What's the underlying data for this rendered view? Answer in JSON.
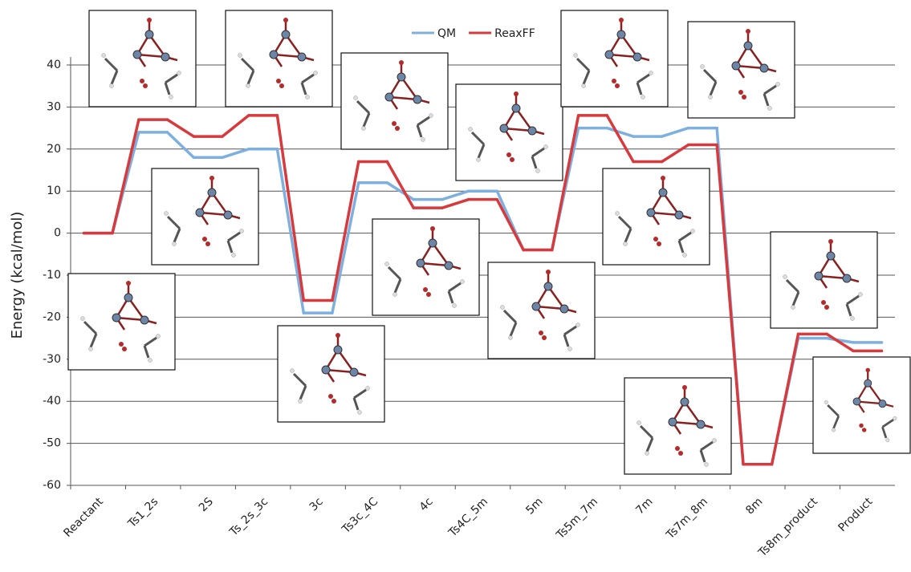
{
  "chart_data": {
    "type": "step-line",
    "y_label": "Energy (kcal/mol)",
    "categories": [
      "Reactant",
      "Ts1_2s",
      "2S",
      "Ts_2s_3c",
      "3c",
      "Ts3c_4C",
      "4c",
      "Ts4C_5m",
      "5m",
      "Ts5m_7m",
      "7m",
      "Ts7m_8m",
      "8m",
      "Ts8m_product",
      "Product"
    ],
    "series": [
      {
        "name": "QM",
        "color": "#7eb0df",
        "values": [
          0,
          24,
          18,
          20,
          -19,
          12,
          8,
          10,
          -4,
          25,
          23,
          25,
          -55,
          -25,
          -26
        ]
      },
      {
        "name": "ReaxFF",
        "color": "#d8393d",
        "values": [
          0,
          27,
          23,
          28,
          -16,
          17,
          6,
          8,
          -4,
          28,
          17,
          21,
          -55,
          -24,
          -28
        ]
      }
    ],
    "ylim": [
      -60,
      40
    ],
    "yticks": [
      -60,
      -50,
      -40,
      -30,
      -20,
      -10,
      0,
      10,
      20,
      30,
      40
    ],
    "grid": true,
    "legend": "top"
  }
}
